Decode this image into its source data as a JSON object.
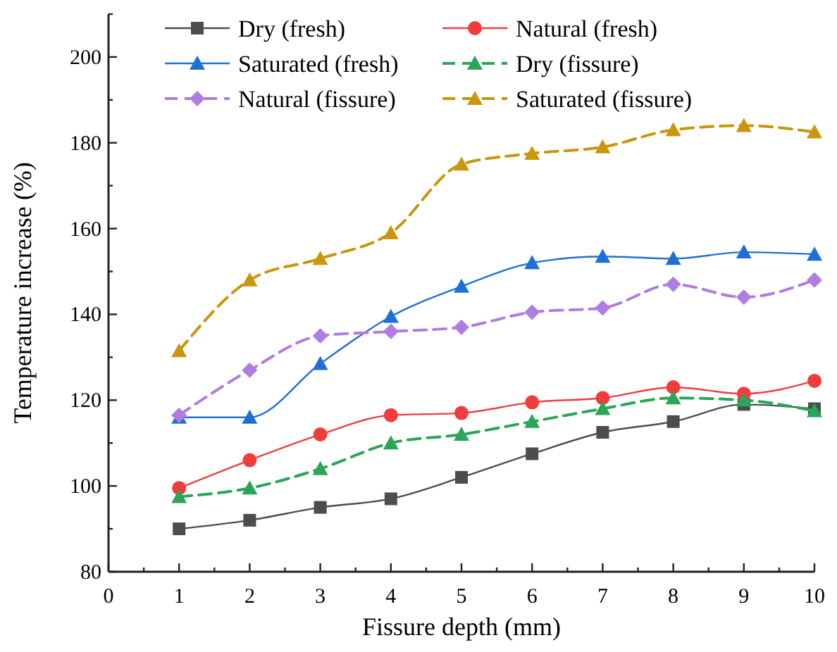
{
  "chart_data": {
    "type": "line",
    "xlabel": "Fissure  depth (mm)",
    "ylabel": "Temperature increase (%)",
    "x": [
      1,
      2,
      3,
      4,
      5,
      6,
      7,
      8,
      9,
      10
    ],
    "xlim": [
      0,
      10
    ],
    "xticks": [
      0,
      {
        "value": 0.5,
        "label": null
      },
      1,
      {
        "value": 1.5,
        "label": null
      },
      2,
      {
        "value": 2.5,
        "label": null
      },
      3,
      {
        "value": 3.5,
        "label": null
      },
      4,
      {
        "value": 4.5,
        "label": null
      },
      5,
      {
        "value": 5.5,
        "label": null
      },
      6,
      {
        "value": 6.5,
        "label": null
      },
      7,
      {
        "value": 7.5,
        "label": null
      },
      8,
      {
        "value": 8.5,
        "label": null
      },
      9,
      {
        "value": 9.5,
        "label": null
      },
      10
    ],
    "ylim": [
      80,
      210
    ],
    "yticks": [
      80,
      {
        "value": 90,
        "label": null
      },
      100,
      {
        "value": 110,
        "label": null
      },
      120,
      {
        "value": 130,
        "label": null
      },
      140,
      {
        "value": 150,
        "label": null
      },
      160,
      {
        "value": 170,
        "label": null
      },
      180,
      {
        "value": 190,
        "label": null
      },
      200,
      {
        "value": 210,
        "label": null
      }
    ],
    "grid": false,
    "legend": "top left",
    "series": [
      {
        "name": "Dry (fresh)",
        "color": "#4d4d4d",
        "marker": "square",
        "line_style": "solid",
        "values": [
          90,
          92,
          95,
          97,
          102,
          107.5,
          112.5,
          115,
          119,
          118
        ]
      },
      {
        "name": "Natural (fresh)",
        "color": "#f03c3c",
        "marker": "circle",
        "line_style": "solid",
        "values": [
          99.5,
          106,
          112,
          116.5,
          117,
          119.5,
          120.5,
          123,
          121.5,
          124.5
        ]
      },
      {
        "name": "Saturated (fresh)",
        "color": "#1f6fd6",
        "marker": "triangle",
        "line_style": "solid",
        "values": [
          116,
          116,
          128.5,
          139.5,
          146.5,
          152,
          153.5,
          153,
          154.5,
          154
        ]
      },
      {
        "name": "Dry (fissure)",
        "color": "#2aa55a",
        "marker": "triangle",
        "line_style": "dashed",
        "values": [
          97.5,
          99.5,
          104,
          110,
          112,
          115,
          118,
          120.5,
          120,
          117.5
        ]
      },
      {
        "name": "Natural (fissure)",
        "color": "#b07ce0",
        "marker": "diamond",
        "line_style": "dashed",
        "values": [
          116.5,
          127,
          135,
          136,
          137,
          140.5,
          141.5,
          147,
          144,
          148
        ]
      },
      {
        "name": "Saturated (fissure)",
        "color": "#c9960c",
        "marker": "triangle",
        "line_style": "dashed",
        "values": [
          131.5,
          148,
          153,
          159,
          175,
          177.5,
          179,
          183,
          184,
          182.5
        ]
      }
    ]
  }
}
